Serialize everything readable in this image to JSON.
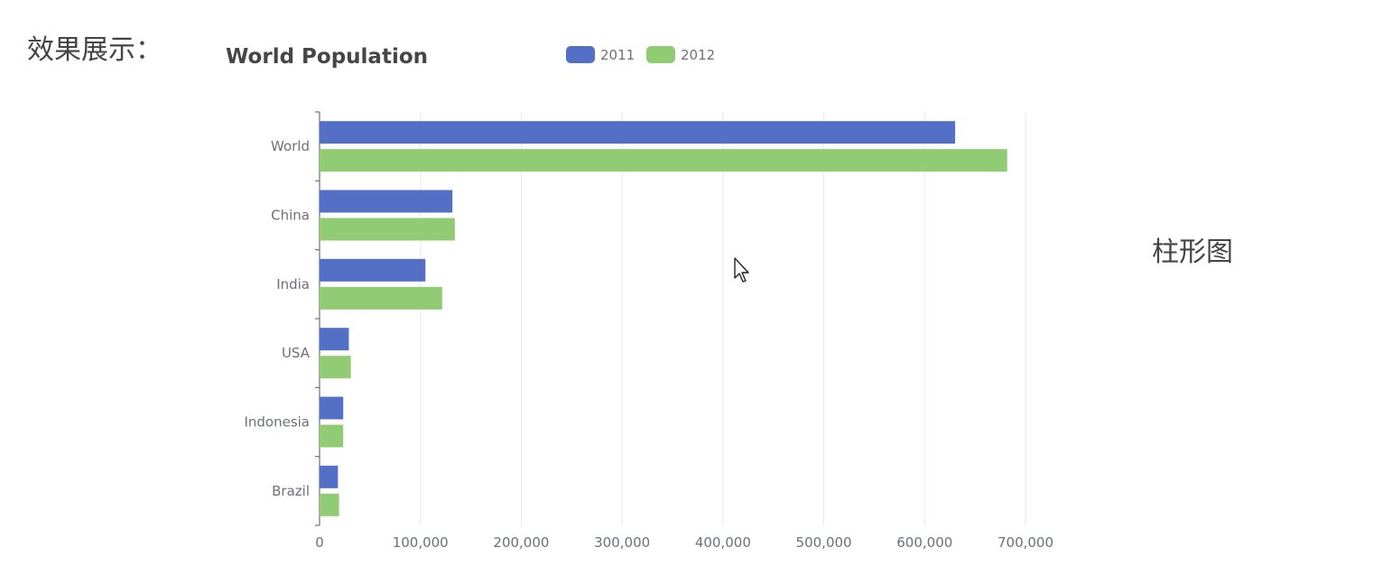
{
  "intro_label": "效果展示：",
  "chart_type_label": "柱形图",
  "colors": {
    "series_2011": "#5470c6",
    "series_2012": "#91cc75",
    "axis": "#6e7079",
    "grid": "#e8e8e8",
    "title": "#464646",
    "label": "#6e7079"
  },
  "chart_data": {
    "type": "bar",
    "orientation": "horizontal",
    "title": "World Population",
    "categories": [
      "World",
      "China",
      "India",
      "USA",
      "Indonesia",
      "Brazil"
    ],
    "series": [
      {
        "name": "2011",
        "values": [
          630230,
          131744,
          104970,
          29034,
          23489,
          18203
        ]
      },
      {
        "name": "2012",
        "values": [
          681807,
          134141,
          121594,
          31000,
          23438,
          19325
        ]
      }
    ],
    "xlim": [
      0,
      700000
    ],
    "xticks": [
      0,
      100000,
      200000,
      300000,
      400000,
      500000,
      600000,
      700000
    ],
    "xtick_labels": [
      "0",
      "100,000",
      "200,000",
      "300,000",
      "400,000",
      "500,000",
      "600,000",
      "700,000"
    ],
    "grid": true,
    "legend_position": "top-center"
  }
}
